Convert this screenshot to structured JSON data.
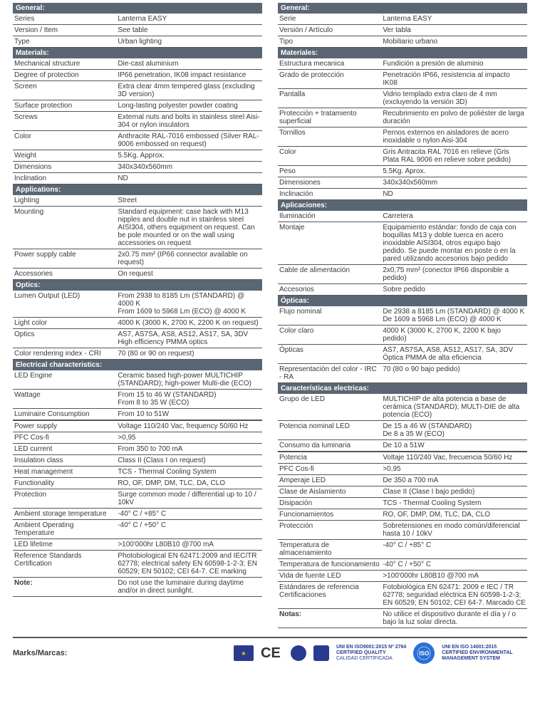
{
  "left": {
    "sections": [
      {
        "title": "General:",
        "rows": [
          {
            "label": "Series",
            "value": "Lanterna EASY"
          },
          {
            "label": "Version / Item",
            "value": "See table"
          },
          {
            "label": "Type",
            "value": "Urban lighting"
          }
        ]
      },
      {
        "title": "Materials:",
        "rows": [
          {
            "label": "Mechanical structure",
            "value": "Die-cast aluminium"
          },
          {
            "label": "Degree of protection",
            "value": "IP66 penetration, IK08 impact resistance"
          },
          {
            "label": "Screen",
            "value": "Extra clear 4mm tempered glass (excluding 3D version)"
          },
          {
            "label": "Surface protection",
            "value": "Long-lasting polyester powder coating"
          },
          {
            "label": "Screws",
            "value": "External nuts and bolts in stainless steel Aisi-304 or nylon insulators"
          },
          {
            "label": "Color",
            "value": "Anthracite RAL-7016 embossed (Silver RAL-9006 embossed on request)"
          },
          {
            "label": "Weight",
            "value": "5.5Kg. Approx."
          },
          {
            "label": "Dimensions",
            "value": "340x340x560mm"
          },
          {
            "label": "Inclination",
            "value": "ND"
          }
        ]
      },
      {
        "title": "Applications:",
        "rows": [
          {
            "label": "Lighting",
            "value": "Street"
          },
          {
            "label": "Mounting",
            "value": "Standard equipment: case back with M13 nipples and double nut in stainless steel AISI304, others equipment on request. Can be pole mounted or on the wall using accessories on request"
          },
          {
            "label": "Power supply cable",
            "value": "2x0.75 mm² (IP66 connector available on request)"
          },
          {
            "label": "Accessories",
            "value": "On request"
          }
        ]
      },
      {
        "title": "Optics:",
        "rows": [
          {
            "label": "Lumen Output (LED)",
            "value": "From 2938 to 8185 Lm (STANDARD) @ 4000 K\nFrom 1609 to 5968 Lm (ECO) @ 4000 K"
          },
          {
            "label": "Light color",
            "value": "4000 K (3000 K, 2700 K, 2200 K on request)"
          },
          {
            "label": "Optics",
            "value": "AS7, AS7SA, AS8, AS12, AS17, SA, 3DV\nHigh efficiency PMMA optics"
          },
          {
            "label": "Color rendering index - CRI",
            "value": "70 (80 or 90 on request)"
          }
        ]
      },
      {
        "title": "Electrical characteristics:",
        "rows": [
          {
            "label": "LED Engine",
            "value": "Ceramic based high-power MULTICHIP (STANDARD); high-power Multi-die (ECO)"
          },
          {
            "label": "Wattage",
            "value": "From 15 to 46 W (STANDARD)\nFrom 8 to 35 W (ECO)"
          },
          {
            "label": "Luminaire Consumption",
            "value": "From 10 to 51W"
          },
          {
            "label": "Power supply",
            "value": "Voltage 110/240 Vac, frequency 50/60 Hz",
            "topBorder": true
          },
          {
            "label": "PFC Cos-fi",
            "value": ">0,95"
          },
          {
            "label": "LED current",
            "value": "From 350 to 700 mA"
          },
          {
            "label": "Insulation class",
            "value": "Class II (Class I on request)"
          },
          {
            "label": "Heat management",
            "value": "TCS - Thermal Cooling System"
          },
          {
            "label": "Functionality",
            "value": "RO, OF, DMP, DM, TLC, DA, CLO"
          },
          {
            "label": "Protection",
            "value": "Surge common mode / differential up to 10 / 10kV"
          },
          {
            "label": "Ambient storage temperature",
            "value": "-40° C / +85° C"
          },
          {
            "label": "Ambient Operating Temperature",
            "value": "-40° C / +50° C"
          },
          {
            "label": "LED lifetime",
            "value": ">100'000hr L80B10 @700 mA"
          },
          {
            "label": "Reference Standards Certification",
            "value": "Photobiological EN 62471:2009 and IEC/TR 62778; electrical safety EN 60598-1-2-3; EN 60529; EN 50102; CEI 64-7. CE marking"
          },
          {
            "label": "Note:",
            "value": "Do not use the luminaire during daytime and/or in direct sunlight.",
            "note": true
          }
        ]
      }
    ]
  },
  "right": {
    "sections": [
      {
        "title": "General:",
        "rows": [
          {
            "label": "Serie",
            "value": "Lanterna EASY"
          },
          {
            "label": "Versión / Artículo",
            "value": "Ver tabla"
          },
          {
            "label": "Tipo",
            "value": "Mobiliario urbano"
          }
        ]
      },
      {
        "title": "Materiales:",
        "rows": [
          {
            "label": "Estructura mecanica",
            "value": "Fundición a presión de aluminio"
          },
          {
            "label": "Grado de protección",
            "value": "Penetración IP66, resistencia al impacto IK08"
          },
          {
            "label": "Pantalla",
            "value": "Vidrio templado extra claro de 4 mm (excluyendo la versión 3D)"
          },
          {
            "label": "Protección + tratamiento superficial",
            "value": "Recubrimiento en polvo de poliéster de larga duración"
          },
          {
            "label": "Tornillos",
            "value": "Pernos externos en aisladores de acero inoxidable o nylon Aisi-304"
          },
          {
            "label": "Color",
            "value": "Gris Antracita RAL 7016 en relieve (Gris Plata RAL 9006 en relieve sobre pedido)"
          },
          {
            "label": "Peso",
            "value": "5.5Kg. Aprox."
          },
          {
            "label": "Dimensiones",
            "value": "340x340x560mm"
          },
          {
            "label": "Inclinación",
            "value": "ND"
          }
        ]
      },
      {
        "title": "Aplicaciones:",
        "rows": [
          {
            "label": "Iluminación",
            "value": "Carretera"
          },
          {
            "label": "Montaje",
            "value": "Equipamiento estándar: fondo de caja con boquillas M13 y doble tuerca en acero inoxidable AISI304, otros equipo bajo pedido. Se puede montar en poste o en la pared utilizando accesorios bajo pedido"
          },
          {
            "label": "Cable de alimentación",
            "value": "2x0,75 mm² (conector IP66 disponible a pedido)"
          },
          {
            "label": "Accesorios",
            "value": "Sobre pedido"
          }
        ]
      },
      {
        "title": "Ópticas:",
        "rows": [
          {
            "label": "Flujo nominal",
            "value": "De 2938 a 8185 Lm (STANDARD) @ 4000 K\nDe 1609 a 5968 Lm (ECO) @ 4000 K"
          },
          {
            "label": "Color claro",
            "value": "4000 K (3000 K, 2700 K, 2200 K bajo pedido)"
          },
          {
            "label": "Ópticas",
            "value": "AS7, AS7SA, AS8, AS12, AS17, SA, 3DV\nÓptica PMMA de alta eficiencia"
          },
          {
            "label": "Representación del color - IRC - RA",
            "value": "70 (80 o 90 bajo pedido)"
          }
        ]
      },
      {
        "title": "Características electricas:",
        "rows": [
          {
            "label": "Grupo de LED",
            "value": "MULTICHIP de alta potencia a base de cerámica (STANDARD); MULTI-DIE de alta potencia (ECO)"
          },
          {
            "label": "Potencia nominal LED",
            "value": "De 15 a 46 W (STANDARD)\nDe 8 a 35 W (ECO)"
          },
          {
            "label": "Consumo da luminaria",
            "value": "De 10 a 51W"
          },
          {
            "label": "Potencia",
            "value": "Voltaje 110/240 Vac, frecuencia 50/60 Hz",
            "topBorder": true
          },
          {
            "label": "PFC Cos-fi",
            "value": ">0,95"
          },
          {
            "label": "Amperaje LED",
            "value": "De 350 a 700 mA"
          },
          {
            "label": "Clase de Aislamiento",
            "value": "Clase II (Clase I bajo pedido)"
          },
          {
            "label": "Disipación",
            "value": "TCS - Thermal Cooling System"
          },
          {
            "label": "Funcionamientos",
            "value": "RO, OF, DMP, DM, TLC, DA, CLO"
          },
          {
            "label": "Protección",
            "value": "Sobretensiones en modo común/diferencial hasta 10 / 10kV"
          },
          {
            "label": "Temperatura de almacenamiento",
            "value": "-40° C / +85° C"
          },
          {
            "label": "Temperatura de funcionamiento",
            "value": "-40° C / +50° C"
          },
          {
            "label": "Vida de fuente LED",
            "value": ">100'000hr L80B10 @700 mA"
          },
          {
            "label": "Estándares de referencia Certificaciones",
            "value": "Fotobiológica EN 62471: 2009 e IEC / TR 62778; seguridad eléctrica EN 60598-1-2-3; EN 60529; EN 50102; CEI 64-7. Marcado CE"
          },
          {
            "label": "Notas:",
            "value": "No utilice el dispositivo durante el día y / o bajo la luz solar directa.",
            "note": true
          }
        ]
      }
    ]
  },
  "footer": {
    "marks_label": "Marks/Marcas:",
    "ce_label": "CE",
    "iso_label": "ISO",
    "cert1": {
      "line1": "UNI EN ISO9001:2015 Nº 2764",
      "line2": "CERTIFIED QUALITY",
      "line3": "CALIDAD CERTIFICADA"
    },
    "cert2": {
      "line1": "UNI EN ISO 14001:2015",
      "line2": "CERTIFIED ENVIRONMENTAL",
      "line3": "MANAGEMENT SYSTEM"
    }
  },
  "colors": {
    "header_bg": "#5a6673",
    "text": "#3a3a3a",
    "border": "#555555",
    "cert_blue": "#2a3b8f"
  }
}
